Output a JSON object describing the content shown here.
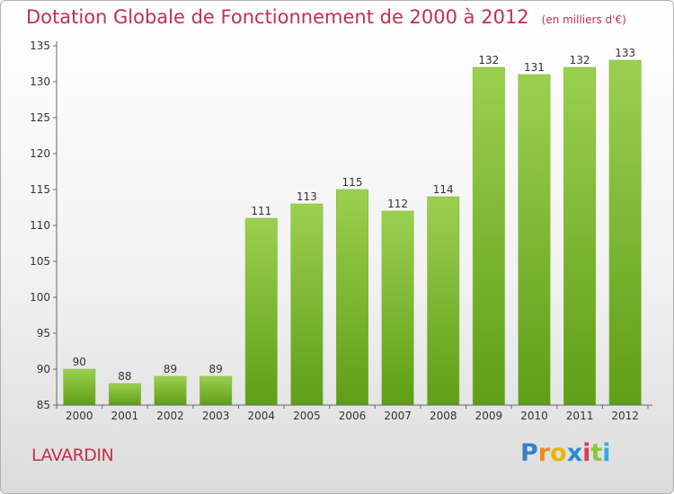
{
  "title": "Dotation Globale de Fonctionnement de 2000 à 2012",
  "subtitle": "(en milliers d'€)",
  "city": "LAVARDIN",
  "logo": {
    "text": "Proxiti",
    "letters": [
      {
        "ch": "P",
        "color": "#3a7fc4"
      },
      {
        "ch": "r",
        "color": "#f08a1c"
      },
      {
        "ch": "o",
        "color": "#e6b800"
      },
      {
        "ch": "x",
        "color": "#2a8bd0"
      },
      {
        "ch": "i",
        "color": "#d43f5c"
      },
      {
        "ch": "t",
        "color": "#8cc63f"
      },
      {
        "ch": "i",
        "color": "#3aa8e0"
      }
    ]
  },
  "colors": {
    "title": "#c0314a",
    "bar_top": "#9bd04f",
    "bar_bottom": "#5f9e17",
    "axis": "#666666"
  },
  "chart_data": {
    "type": "bar",
    "title": "Dotation Globale de Fonctionnement de 2000 à 2012",
    "subtitle": "(en milliers d'€)",
    "xlabel": "",
    "ylabel": "",
    "categories": [
      "2000",
      "2001",
      "2002",
      "2003",
      "2004",
      "2005",
      "2006",
      "2007",
      "2008",
      "2009",
      "2010",
      "2011",
      "2012"
    ],
    "values": [
      90,
      88,
      89,
      89,
      111,
      113,
      115,
      112,
      114,
      132,
      131,
      132,
      133
    ],
    "ylim": [
      85,
      135
    ],
    "yticks": [
      85,
      90,
      95,
      100,
      105,
      110,
      115,
      120,
      125,
      130,
      135
    ],
    "grid": false,
    "legend": "none"
  }
}
